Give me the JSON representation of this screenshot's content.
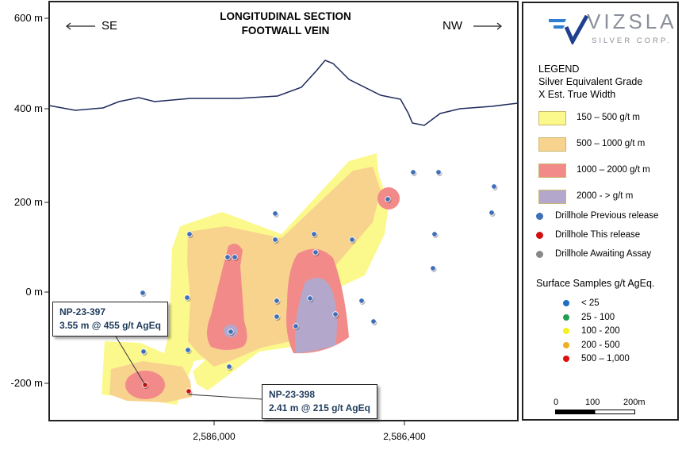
{
  "title": {
    "line1": "LONGITUDINAL SECTION",
    "line2": "FOOTWALL VEIN"
  },
  "directions": {
    "left": "SE",
    "right": "NW"
  },
  "y_axis": [
    "600 m",
    "400 m",
    "200 m",
    "0 m",
    "-200 m"
  ],
  "x_axis": [
    "2,586,000",
    "2,586,400"
  ],
  "callouts": [
    {
      "hole": "NP-23-397",
      "result": "3.55 m @ 455 g/t AgEq"
    },
    {
      "hole": "NP-23-398",
      "result": "2.41 m @ 215 g/t AgEq"
    }
  ],
  "logo": {
    "name": "VIZSLA",
    "sub": "SILVER CORP."
  },
  "legend": {
    "heading": "LEGEND",
    "line2": "Silver Equivalent Grade",
    "line3": "X Est. True Width",
    "grades": [
      {
        "label": "150 – 500 g/t m",
        "color": "#fbf98c"
      },
      {
        "label": "500 – 1000 g/t m",
        "color": "#f7d38e"
      },
      {
        "label": "1000 – 2000 g/t m",
        "color": "#f28a8a"
      },
      {
        "label": "2000 - > g/t m",
        "color": "#b3a8cc"
      }
    ],
    "drillholes": [
      {
        "label": "Drillhole Previous release",
        "color": "#3f6fb8"
      },
      {
        "label": "Drillhole This release",
        "color": "#d01010"
      },
      {
        "label": "Drillhole Awaiting Assay",
        "color": "#888888"
      }
    ],
    "surface_title": "Surface Samples g/t AgEq.",
    "surface": [
      {
        "label": "< 25",
        "color": "#1f6fc0"
      },
      {
        "label": "25 - 100",
        "color": "#20a050"
      },
      {
        "label": "100 - 200",
        "color": "#f5f020"
      },
      {
        "label": "200 - 500",
        "color": "#f0b020"
      },
      {
        "label": "500 – 1,000",
        "color": "#e01010"
      }
    ],
    "scale": [
      "0",
      "100",
      "200m"
    ]
  }
}
